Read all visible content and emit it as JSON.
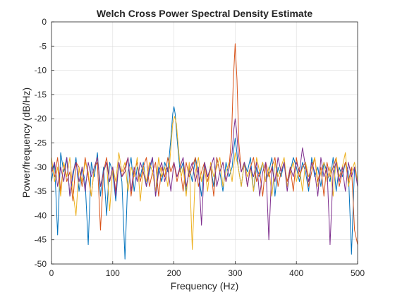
{
  "chart_data": {
    "type": "line",
    "title": "Welch Cross Power Spectral Density Estimate",
    "xlabel": "Frequency (Hz)",
    "ylabel": "Power/frequency (dB/Hz)",
    "xlim": [
      0,
      500
    ],
    "ylim": [
      -50,
      0
    ],
    "xticks": [
      "0",
      "100",
      "200",
      "300",
      "400",
      "500"
    ],
    "yticks": [
      "0",
      "-5",
      "-10",
      "-15",
      "-20",
      "-25",
      "-30",
      "-35",
      "-40",
      "-45",
      "-50"
    ],
    "grid": true,
    "legend": "none",
    "series": [
      {
        "color": "#0072BD",
        "x": [
          0,
          5,
          10,
          15,
          20,
          25,
          30,
          35,
          40,
          45,
          50,
          55,
          60,
          65,
          70,
          75,
          80,
          85,
          90,
          95,
          100,
          105,
          110,
          115,
          120,
          125,
          130,
          135,
          140,
          145,
          150,
          155,
          160,
          165,
          170,
          175,
          180,
          185,
          190,
          195,
          198,
          200,
          202,
          205,
          210,
          215,
          220,
          225,
          230,
          235,
          240,
          245,
          250,
          255,
          260,
          265,
          270,
          275,
          280,
          285,
          290,
          295,
          298,
          300,
          302,
          305,
          310,
          315,
          320,
          325,
          330,
          335,
          340,
          345,
          350,
          355,
          360,
          365,
          370,
          375,
          380,
          385,
          390,
          395,
          400,
          405,
          410,
          415,
          420,
          425,
          430,
          435,
          440,
          445,
          450,
          455,
          460,
          465,
          470,
          475,
          480,
          485,
          490,
          495,
          500
        ],
        "y": [
          -33,
          -29,
          -44,
          -27,
          -31,
          -28,
          -36,
          -32,
          -28,
          -35,
          -30,
          -33,
          -46,
          -29,
          -32,
          -27,
          -36,
          -30,
          -40,
          -29,
          -31,
          -37,
          -29,
          -33,
          -49,
          -31,
          -28,
          -35,
          -30,
          -32,
          -29,
          -34,
          -31,
          -28,
          -36,
          -30,
          -33,
          -29,
          -31,
          -24,
          -19,
          -17.5,
          -19,
          -24,
          -31,
          -29,
          -35,
          -30,
          -33,
          -28,
          -31,
          -36,
          -29,
          -32,
          -30,
          -34,
          -28,
          -31,
          -35,
          -29,
          -32,
          -30,
          -26,
          -24,
          -26,
          -30,
          -34,
          -29,
          -31,
          -28,
          -35,
          -30,
          -32,
          -29,
          -33,
          -31,
          -28,
          -36,
          -30,
          -32,
          -29,
          -34,
          -31,
          -28,
          -30,
          -33,
          -29,
          -31,
          -35,
          -28,
          -32,
          -30,
          -34,
          -29,
          -31,
          -33,
          -28,
          -35,
          -30,
          -32,
          -29,
          -31,
          -48,
          -30,
          -33
        ]
      },
      {
        "color": "#D95319",
        "x": [
          0,
          5,
          10,
          15,
          20,
          25,
          30,
          35,
          40,
          45,
          50,
          55,
          60,
          65,
          70,
          75,
          80,
          85,
          90,
          95,
          100,
          105,
          110,
          115,
          120,
          125,
          130,
          135,
          140,
          145,
          150,
          155,
          160,
          165,
          170,
          175,
          180,
          185,
          190,
          195,
          200,
          205,
          210,
          215,
          220,
          225,
          230,
          235,
          240,
          245,
          250,
          255,
          260,
          265,
          270,
          275,
          280,
          285,
          290,
          294,
          297,
          300,
          303,
          306,
          310,
          315,
          320,
          325,
          330,
          335,
          340,
          345,
          350,
          355,
          360,
          365,
          370,
          375,
          380,
          385,
          390,
          395,
          400,
          405,
          410,
          415,
          420,
          425,
          430,
          435,
          440,
          445,
          450,
          455,
          460,
          465,
          470,
          475,
          480,
          485,
          490,
          495,
          500
        ],
        "y": [
          -30,
          -32,
          -28,
          -35,
          -29,
          -33,
          -31,
          -37,
          -29,
          -30,
          -34,
          -28,
          -32,
          -36,
          -30,
          -29,
          -43,
          -31,
          -28,
          -33,
          -30,
          -35,
          -29,
          -32,
          -30,
          -28,
          -36,
          -31,
          -29,
          -33,
          -30,
          -28,
          -34,
          -31,
          -29,
          -36,
          -30,
          -32,
          -28,
          -31,
          -29,
          -33,
          -30,
          -35,
          -29,
          -32,
          -30,
          -28,
          -34,
          -31,
          -29,
          -33,
          -30,
          -36,
          -28,
          -31,
          -29,
          -33,
          -30,
          -24,
          -12,
          -4.5,
          -12,
          -25,
          -31,
          -29,
          -34,
          -30,
          -28,
          -33,
          -31,
          -36,
          -29,
          -32,
          -30,
          -28,
          -34,
          -31,
          -29,
          -33,
          -30,
          -35,
          -28,
          -32,
          -30,
          -29,
          -34,
          -31,
          -28,
          -33,
          -30,
          -36,
          -29,
          -32,
          -30,
          -28,
          -34,
          -31,
          -29,
          -33,
          -30,
          -43,
          -46
        ]
      },
      {
        "color": "#EDB120",
        "x": [
          0,
          5,
          10,
          15,
          20,
          25,
          30,
          35,
          40,
          45,
          50,
          55,
          60,
          65,
          70,
          75,
          80,
          85,
          90,
          95,
          100,
          105,
          110,
          115,
          120,
          125,
          130,
          135,
          140,
          145,
          150,
          155,
          160,
          165,
          170,
          175,
          180,
          185,
          190,
          195,
          198,
          201,
          204,
          208,
          212,
          215,
          220,
          225,
          230,
          235,
          240,
          245,
          250,
          255,
          260,
          265,
          270,
          275,
          280,
          285,
          290,
          295,
          300,
          305,
          310,
          315,
          320,
          325,
          330,
          335,
          340,
          345,
          350,
          355,
          360,
          365,
          370,
          375,
          380,
          385,
          390,
          395,
          400,
          405,
          410,
          415,
          420,
          425,
          430,
          435,
          440,
          445,
          450,
          455,
          460,
          465,
          470,
          475,
          480,
          485,
          490,
          495,
          500
        ],
        "y": [
          -28,
          -33,
          -30,
          -36,
          -29,
          -32,
          -28,
          -35,
          -40,
          -30,
          -33,
          -29,
          -31,
          -36,
          -30,
          -28,
          -34,
          -31,
          -29,
          -39,
          -30,
          -33,
          -27,
          -31,
          -29,
          -35,
          -30,
          -32,
          -28,
          -37,
          -30,
          -33,
          -29,
          -31,
          -35,
          -28,
          -32,
          -30,
          -34,
          -26,
          -21,
          -19.5,
          -21,
          -27,
          -32,
          -30,
          -36,
          -29,
          -47,
          -31,
          -28,
          -33,
          -30,
          -35,
          -29,
          -32,
          -30,
          -28,
          -34,
          -31,
          -29,
          -33,
          -27,
          -30,
          -34,
          -29,
          -32,
          -30,
          -35,
          -28,
          -31,
          -29,
          -33,
          -30,
          -36,
          -29,
          -32,
          -30,
          -28,
          -34,
          -31,
          -29,
          -33,
          -30,
          -35,
          -29,
          -32,
          -30,
          -28,
          -34,
          -31,
          -29,
          -33,
          -30,
          -36,
          -28,
          -32,
          -30,
          -27,
          -34,
          -31,
          -29,
          -33
        ]
      },
      {
        "color": "#7E2F8E",
        "x": [
          0,
          5,
          10,
          15,
          20,
          25,
          30,
          35,
          40,
          45,
          50,
          55,
          60,
          65,
          70,
          75,
          80,
          85,
          90,
          95,
          100,
          105,
          110,
          115,
          120,
          125,
          130,
          135,
          140,
          145,
          150,
          155,
          160,
          165,
          170,
          175,
          180,
          185,
          190,
          195,
          200,
          205,
          210,
          215,
          220,
          225,
          230,
          235,
          240,
          245,
          250,
          255,
          260,
          265,
          270,
          275,
          280,
          285,
          290,
          295,
          298,
          300,
          302,
          305,
          310,
          315,
          320,
          325,
          330,
          335,
          340,
          345,
          350,
          355,
          360,
          365,
          370,
          375,
          380,
          385,
          390,
          395,
          400,
          405,
          410,
          415,
          420,
          425,
          430,
          435,
          440,
          445,
          450,
          455,
          460,
          465,
          470,
          475,
          480,
          485,
          490,
          495,
          500
        ],
        "y": [
          -31,
          -29,
          -34,
          -30,
          -33,
          -28,
          -36,
          -31,
          -29,
          -33,
          -30,
          -35,
          -29,
          -32,
          -30,
          -28,
          -34,
          -31,
          -29,
          -33,
          -30,
          -36,
          -29,
          -32,
          -31,
          -28,
          -35,
          -30,
          -33,
          -29,
          -31,
          -34,
          -30,
          -28,
          -36,
          -31,
          -29,
          -33,
          -30,
          -35,
          -29,
          -32,
          -30,
          -28,
          -34,
          -31,
          -29,
          -33,
          -30,
          -42,
          -29,
          -32,
          -30,
          -28,
          -34,
          -31,
          -29,
          -33,
          -30,
          -27,
          -22,
          -20,
          -22,
          -27,
          -31,
          -29,
          -34,
          -30,
          -32,
          -29,
          -36,
          -31,
          -29,
          -45,
          -30,
          -33,
          -28,
          -31,
          -29,
          -35,
          -30,
          -32,
          -29,
          -31,
          -26,
          -30,
          -33,
          -29,
          -31,
          -36,
          -28,
          -32,
          -30,
          -46,
          -31,
          -29,
          -33,
          -30,
          -35,
          -29,
          -32,
          -30,
          -34
        ]
      }
    ]
  }
}
